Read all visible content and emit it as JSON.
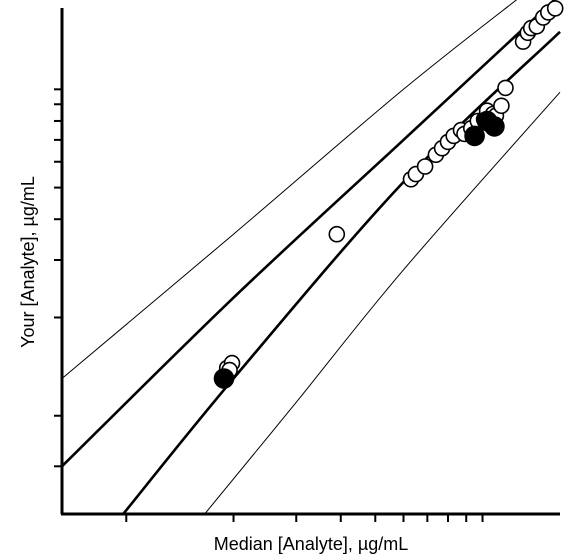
{
  "chart_data": {
    "type": "scatter",
    "title": "",
    "xlabel": "Median [Analyte], µg/mL",
    "ylabel": "Your [Analyte], µg/mL",
    "x_scale": "log",
    "y_scale": "log",
    "xlim": [
      0.066,
      1.65
    ],
    "ylim": [
      0.05,
      1.8
    ],
    "grid": false,
    "legend": "none",
    "x_ticks": [
      0.1,
      0.2,
      0.3,
      0.4,
      0.5,
      0.6,
      0.7,
      0.8,
      0.9,
      1.0
    ],
    "y_ticks": [
      0.07,
      0.1,
      0.2,
      0.3,
      0.4,
      0.5,
      0.6,
      0.7,
      0.8,
      0.9,
      1.0
    ],
    "reference_lines": [
      {
        "name": "",
        "style": "thin",
        "points": [
          [
            0.066,
            0.13
          ],
          [
            0.2,
            0.36
          ],
          [
            0.6,
            1.0
          ],
          [
            1.3,
            1.95
          ]
        ]
      },
      {
        "name": "",
        "style": "thick",
        "points": [
          [
            0.066,
            0.07
          ],
          [
            0.2,
            0.23
          ],
          [
            0.6,
            0.7
          ],
          [
            1.65,
            1.95
          ]
        ]
      },
      {
        "name": "",
        "style": "thick",
        "points": [
          [
            0.098,
            0.05
          ],
          [
            0.2,
            0.13
          ],
          [
            0.6,
            0.52
          ],
          [
            1.65,
            1.5
          ]
        ]
      },
      {
        "name": "",
        "style": "thin",
        "points": [
          [
            0.166,
            0.05
          ],
          [
            0.3,
            0.11
          ],
          [
            0.6,
            0.28
          ],
          [
            1.65,
            0.98
          ]
        ]
      }
    ],
    "series": [
      {
        "marker": "open-circle",
        "points": [
          [
            0.192,
            0.14
          ],
          [
            0.198,
            0.145
          ],
          [
            0.195,
            0.138
          ],
          [
            0.39,
            0.36
          ],
          [
            0.63,
            0.53
          ],
          [
            0.65,
            0.55
          ],
          [
            0.69,
            0.58
          ],
          [
            0.74,
            0.63
          ],
          [
            0.77,
            0.66
          ],
          [
            0.8,
            0.69
          ],
          [
            0.83,
            0.72
          ],
          [
            0.87,
            0.75
          ],
          [
            0.89,
            0.73
          ],
          [
            0.93,
            0.76
          ],
          [
            0.97,
            0.8
          ],
          [
            1.01,
            0.81
          ],
          [
            1.03,
            0.86
          ],
          [
            1.07,
            0.84
          ],
          [
            1.09,
            0.83
          ],
          [
            1.13,
            0.89
          ],
          [
            1.16,
            1.01
          ],
          [
            1.3,
            1.4
          ],
          [
            1.34,
            1.49
          ],
          [
            1.37,
            1.54
          ],
          [
            1.42,
            1.56
          ],
          [
            1.48,
            1.66
          ],
          [
            1.53,
            1.72
          ],
          [
            1.6,
            1.77
          ]
        ]
      },
      {
        "marker": "filled-circle",
        "points": [
          [
            0.188,
            0.13
          ],
          [
            0.95,
            0.72
          ],
          [
            1.03,
            0.8
          ],
          [
            1.08,
            0.77
          ]
        ]
      }
    ]
  }
}
